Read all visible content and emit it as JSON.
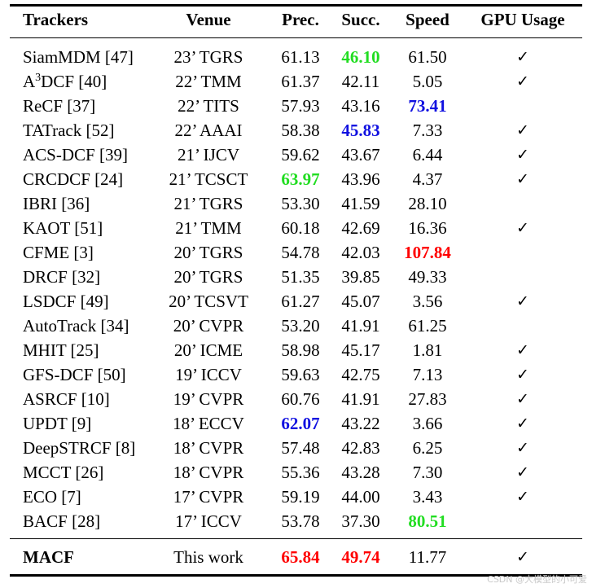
{
  "header": {
    "trackers": "Trackers",
    "venue": "Venue",
    "prec": "Prec.",
    "succ": "Succ.",
    "speed": "Speed",
    "gpu": "GPU Usage"
  },
  "colors": {
    "red": "#ff0000",
    "green": "#22dd22",
    "blue": "#1010e0"
  },
  "rows": [
    {
      "name": "SiamMDM [47]",
      "venue": "23’ TGRS",
      "prec": "61.13",
      "succ": "46.10",
      "speed": "61.50",
      "gpu": "✓",
      "succ_color": "green"
    },
    {
      "name_pre": "A",
      "name_sup": "3",
      "name_post": "DCF [40]",
      "venue": "22’ TMM",
      "prec": "61.37",
      "succ": "42.11",
      "speed": "5.05",
      "gpu": "✓"
    },
    {
      "name": "ReCF [37]",
      "venue": "22’ TITS",
      "prec": "57.93",
      "succ": "43.16",
      "speed": "73.41",
      "gpu": "",
      "speed_color": "blue"
    },
    {
      "name": "TATrack [52]",
      "venue": "22’ AAAI",
      "prec": "58.38",
      "succ": "45.83",
      "speed": "7.33",
      "gpu": "✓",
      "succ_color": "blue"
    },
    {
      "name": "ACS-DCF [39]",
      "venue": "21’ IJCV",
      "prec": "59.62",
      "succ": "43.67",
      "speed": "6.44",
      "gpu": "✓"
    },
    {
      "name": "CRCDCF [24]",
      "venue": "21’ TCSCT",
      "prec": "63.97",
      "succ": "43.96",
      "speed": "4.37",
      "gpu": "✓",
      "prec_color": "green"
    },
    {
      "name": "IBRI [36]",
      "venue": "21’ TGRS",
      "prec": "53.30",
      "succ": "41.59",
      "speed": "28.10",
      "gpu": ""
    },
    {
      "name": "KAOT [51]",
      "venue": "21’ TMM",
      "prec": "60.18",
      "succ": "42.69",
      "speed": "16.36",
      "gpu": "✓"
    },
    {
      "name": "CFME [3]",
      "venue": "20’ TGRS",
      "prec": "54.78",
      "succ": "42.03",
      "speed": "107.84",
      "gpu": "",
      "speed_color": "red"
    },
    {
      "name": "DRCF [32]",
      "venue": "20’ TGRS",
      "prec": "51.35",
      "succ": "39.85",
      "speed": "49.33",
      "gpu": ""
    },
    {
      "name": "LSDCF [49]",
      "venue": "20’ TCSVT",
      "prec": "61.27",
      "succ": "45.07",
      "speed": "3.56",
      "gpu": "✓"
    },
    {
      "name": "AutoTrack [34]",
      "venue": "20’ CVPR",
      "prec": "53.20",
      "succ": "41.91",
      "speed": "61.25",
      "gpu": ""
    },
    {
      "name": "MHIT [25]",
      "venue": "20’ ICME",
      "prec": "58.98",
      "succ": "45.17",
      "speed": "1.81",
      "gpu": "✓"
    },
    {
      "name": "GFS-DCF [50]",
      "venue": "19’ ICCV",
      "prec": "59.63",
      "succ": "42.75",
      "speed": "7.13",
      "gpu": "✓"
    },
    {
      "name": "ASRCF [10]",
      "venue": "19’ CVPR",
      "prec": "60.76",
      "succ": "41.91",
      "speed": "27.83",
      "gpu": "✓"
    },
    {
      "name": "UPDT [9]",
      "venue": "18’ ECCV",
      "prec": "62.07",
      "succ": "43.22",
      "speed": "3.66",
      "gpu": "✓",
      "prec_color": "blue"
    },
    {
      "name": "DeepSTRCF [8]",
      "venue": "18’ CVPR",
      "prec": "57.48",
      "succ": "42.83",
      "speed": "6.25",
      "gpu": "✓"
    },
    {
      "name": "MCCT [26]",
      "venue": "18’ CVPR",
      "prec": "55.36",
      "succ": "43.28",
      "speed": "7.30",
      "gpu": "✓"
    },
    {
      "name": "ECO [7]",
      "venue": "17’ CVPR",
      "prec": "59.19",
      "succ": "44.00",
      "speed": "3.43",
      "gpu": "✓"
    },
    {
      "name": "BACF [28]",
      "venue": "17’ ICCV",
      "prec": "53.78",
      "succ": "37.30",
      "speed": "80.51",
      "gpu": "",
      "speed_color": "green"
    }
  ],
  "final": {
    "name": "MACF",
    "venue": "This work",
    "prec": "65.84",
    "succ": "49.74",
    "speed": "11.77",
    "gpu": "✓",
    "prec_color": "red",
    "succ_color": "red"
  },
  "watermark": "CSDN @大模型的小可爱"
}
